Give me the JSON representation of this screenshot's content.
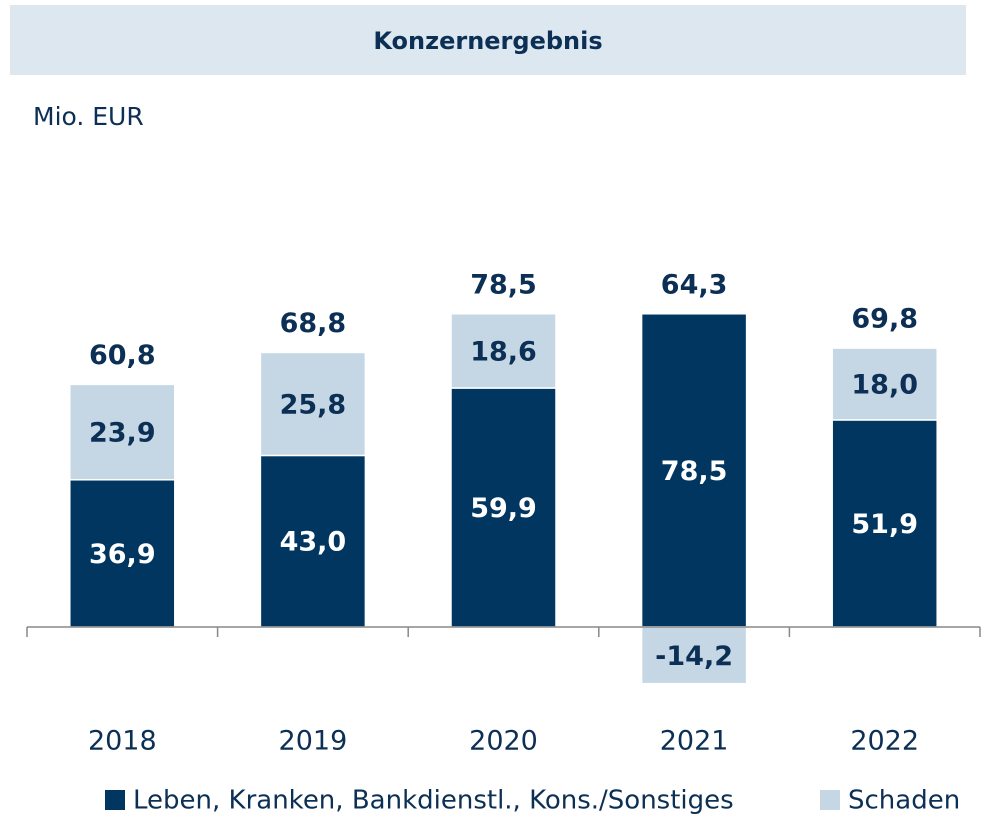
{
  "chart_data": {
    "type": "stacked_bar",
    "title": "Konzernergebnis",
    "y_label": "Mio. EUR",
    "categories": [
      "2018",
      "2019",
      "2020",
      "2021",
      "2022"
    ],
    "series": [
      {
        "name": "Leben, Kranken, Bankdienstl., Kons./Sonstiges",
        "color": "#003660",
        "values": [
          36.9,
          43.0,
          59.9,
          78.5,
          51.9
        ],
        "value_labels": [
          "36,9",
          "43,0",
          "59,9",
          "78,5",
          "51,9"
        ]
      },
      {
        "name": "Schaden",
        "color": "#c5d7e4",
        "values": [
          23.9,
          25.8,
          18.6,
          -14.2,
          18.0
        ],
        "value_labels": [
          "23,9",
          "25,8",
          "18,6",
          "-14,2",
          "18,0"
        ]
      }
    ],
    "totals": [
      60.8,
      68.8,
      78.5,
      64.3,
      69.8
    ],
    "total_labels": [
      "60,8",
      "68,8",
      "78,5",
      "64,3",
      "69,8"
    ]
  }
}
